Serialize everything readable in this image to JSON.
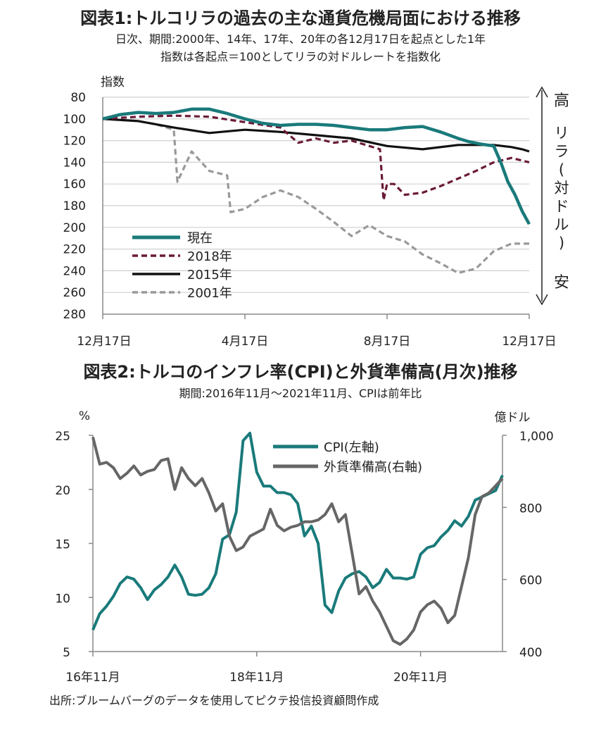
{
  "chart_data": [
    {
      "type": "line",
      "title": "図表1:トルコリラの過去の主な通貨危機局面における推移",
      "subtitle_lines": [
        "日次、期間:2000年、14年、17年、20年の各12月17日を起点とした1年",
        "指数は各起点＝100としてリラの対ドルレートを指数化"
      ],
      "ylabel": "指数",
      "y_reversed": true,
      "ylim": [
        80,
        280
      ],
      "yticks": [
        80,
        100,
        120,
        140,
        160,
        180,
        200,
        220,
        240,
        260,
        280
      ],
      "xticks": [
        "12月17日",
        "4月17日",
        "8月17日",
        "12月17日"
      ],
      "x_tick_positions_months": [
        0,
        4,
        8,
        12
      ],
      "x_range_months": [
        0,
        12
      ],
      "grid": true,
      "legend_position": "bottom-left",
      "right_annotation": {
        "top": "高",
        "middle": "リラ(対ドル)",
        "bottom": "安"
      },
      "series": [
        {
          "name": "現在",
          "color": "#1a7a7a",
          "style": "solid",
          "x": [
            0,
            0.5,
            1,
            1.5,
            2,
            2.5,
            3,
            3.5,
            4,
            4.5,
            5,
            5.5,
            6,
            6.5,
            7,
            7.5,
            8,
            8.5,
            9,
            9.5,
            10,
            10.3,
            10.6,
            11,
            11.2,
            11.4,
            11.6,
            11.8,
            12
          ],
          "values": [
            100,
            96,
            94,
            95,
            94,
            91,
            91,
            95,
            100,
            104,
            106,
            105,
            105,
            106,
            108,
            110,
            110,
            108,
            107,
            112,
            118,
            121,
            123,
            125,
            140,
            158,
            170,
            185,
            197
          ]
        },
        {
          "name": "2018年",
          "color": "#6b1a3a",
          "style": "dashed",
          "x": [
            0,
            1,
            2,
            3,
            4,
            5,
            5.5,
            6,
            6.5,
            7,
            7.5,
            7.8,
            7.9,
            8,
            8.2,
            8.5,
            9,
            9.5,
            10,
            10.5,
            11,
            11.5,
            12
          ],
          "values": [
            100,
            98,
            97,
            98,
            103,
            108,
            122,
            118,
            122,
            120,
            125,
            128,
            175,
            160,
            160,
            170,
            168,
            162,
            155,
            148,
            140,
            136,
            140
          ]
        },
        {
          "name": "2015年",
          "color": "#111111",
          "style": "solid",
          "x": [
            0,
            1,
            2,
            3,
            4,
            5,
            6,
            7,
            8,
            9,
            10,
            11,
            11.5,
            11.8,
            12
          ],
          "values": [
            100,
            102,
            108,
            113,
            110,
            112,
            115,
            118,
            125,
            128,
            124,
            124,
            126,
            128,
            130
          ]
        },
        {
          "name": "2001年",
          "color": "#999999",
          "style": "dashed",
          "x": [
            0,
            1,
            1.5,
            2,
            2.1,
            2.5,
            3,
            3.5,
            3.6,
            4,
            4.5,
            5,
            5.5,
            6,
            6.5,
            7,
            7.5,
            8,
            8.5,
            9,
            9.5,
            10,
            10.5,
            11,
            11.5,
            12
          ],
          "values": [
            100,
            102,
            105,
            110,
            158,
            130,
            148,
            152,
            186,
            183,
            172,
            166,
            172,
            183,
            195,
            208,
            198,
            208,
            213,
            225,
            233,
            242,
            238,
            222,
            215,
            215
          ]
        }
      ]
    },
    {
      "type": "line",
      "title": "図表2:トルコのインフレ率(CPI)と外貨準備高(月次)推移",
      "subtitle": "期間:2016年11月～2021年11月、CPIは前年比",
      "ylabel_left": "%",
      "ylabel_right": "億ドル",
      "ylim_left": [
        5,
        25
      ],
      "ylim_right": [
        400,
        1000
      ],
      "yticks_left": [
        5,
        10,
        15,
        20,
        25
      ],
      "yticks_right": [
        "400",
        "600",
        "800",
        "1,000"
      ],
      "yticks_right_values": [
        400,
        600,
        800,
        1000
      ],
      "xticks": [
        "16年11月",
        "18年11月",
        "20年11月"
      ],
      "x_tick_positions_months": [
        0,
        24,
        48
      ],
      "x_range_months": [
        0,
        60
      ],
      "grid": false,
      "legend_position": "top-center",
      "series": [
        {
          "name": "CPI(左軸)",
          "color": "#1a7a7a",
          "axis": "left",
          "x": [
            0,
            1,
            2,
            3,
            4,
            5,
            6,
            7,
            8,
            9,
            10,
            11,
            12,
            13,
            14,
            15,
            16,
            17,
            18,
            19,
            20,
            21,
            22,
            23,
            24,
            25,
            26,
            27,
            28,
            29,
            30,
            31,
            32,
            33,
            34,
            35,
            36,
            37,
            38,
            39,
            40,
            41,
            42,
            43,
            44,
            45,
            46,
            47,
            48,
            49,
            50,
            51,
            52,
            53,
            54,
            55,
            56,
            57,
            58,
            59,
            60
          ],
          "values": [
            7.0,
            8.5,
            9.2,
            10.1,
            11.3,
            11.9,
            11.7,
            10.9,
            9.8,
            10.7,
            11.2,
            11.9,
            13.0,
            11.9,
            10.3,
            10.2,
            10.3,
            10.9,
            12.2,
            15.4,
            15.8,
            17.9,
            24.5,
            25.2,
            21.6,
            20.3,
            20.3,
            19.7,
            19.7,
            19.5,
            18.7,
            15.7,
            16.6,
            15.0,
            9.3,
            8.6,
            10.6,
            11.8,
            12.2,
            12.4,
            11.9,
            10.9,
            11.4,
            12.6,
            11.8,
            11.8,
            11.7,
            11.9,
            14.0,
            14.6,
            14.8,
            15.6,
            16.2,
            17.1,
            16.6,
            17.5,
            19.0,
            19.3,
            19.6,
            19.9,
            21.3
          ]
        },
        {
          "name": "外貨準備高(右軸)",
          "color": "#666666",
          "axis": "right",
          "x": [
            0,
            1,
            2,
            3,
            4,
            5,
            6,
            7,
            8,
            9,
            10,
            11,
            12,
            13,
            14,
            15,
            16,
            17,
            18,
            19,
            20,
            21,
            22,
            23,
            24,
            25,
            26,
            27,
            28,
            29,
            30,
            31,
            32,
            33,
            34,
            35,
            36,
            37,
            38,
            39,
            40,
            41,
            42,
            43,
            44,
            45,
            46,
            47,
            48,
            49,
            50,
            51,
            52,
            53,
            54,
            55,
            56,
            57,
            58,
            59,
            60
          ],
          "values": [
            995,
            920,
            925,
            910,
            880,
            895,
            915,
            890,
            900,
            905,
            930,
            935,
            850,
            910,
            880,
            860,
            880,
            840,
            790,
            810,
            720,
            680,
            690,
            720,
            730,
            740,
            795,
            750,
            735,
            745,
            750,
            760,
            760,
            765,
            780,
            810,
            760,
            780,
            670,
            560,
            580,
            540,
            510,
            470,
            430,
            420,
            435,
            460,
            510,
            530,
            540,
            520,
            480,
            500,
            580,
            660,
            780,
            830,
            840,
            860,
            880
          ]
        }
      ]
    }
  ],
  "source": "出所:ブルームバーグのデータを使用してピクテ投信投資顧問作成"
}
